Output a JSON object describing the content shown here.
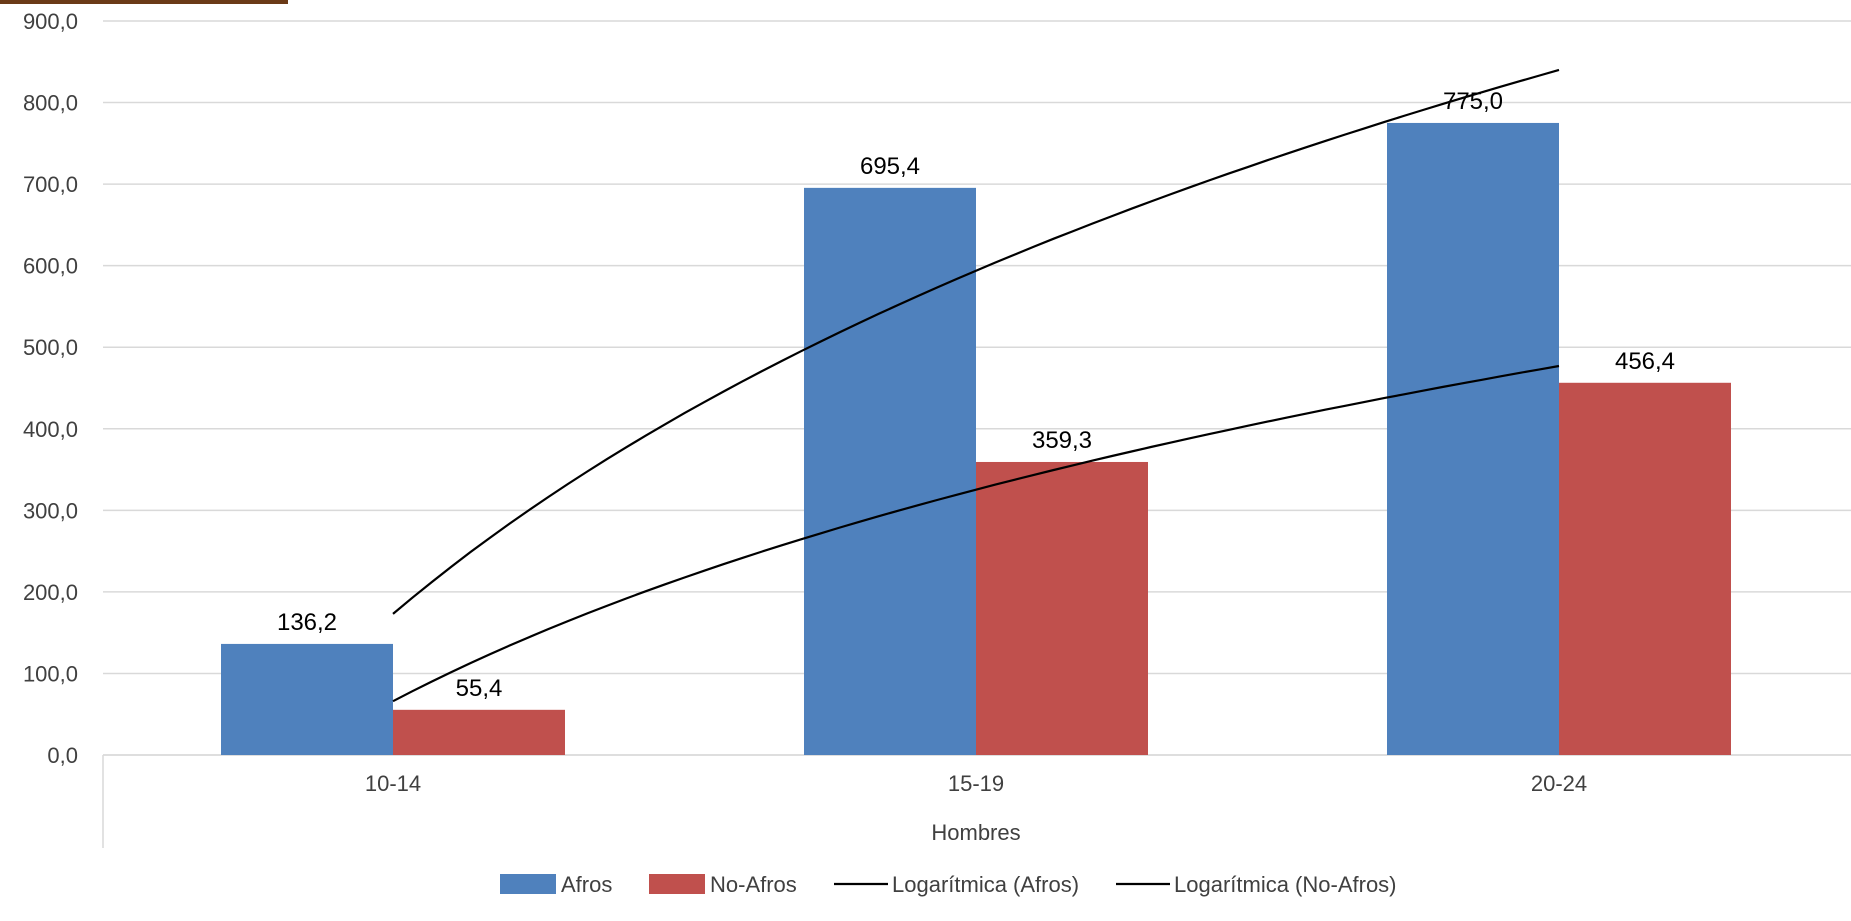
{
  "chart_data": {
    "type": "bar",
    "categories": [
      "10-14",
      "15-19",
      "20-24"
    ],
    "group_label": "Hombres",
    "series": [
      {
        "name": "Afros",
        "values": [
          136.2,
          695.4,
          775.0
        ],
        "labels": [
          "136,2",
          "695,4",
          "775,0"
        ],
        "color": "#4f81bd"
      },
      {
        "name": "No-Afros",
        "values": [
          55.4,
          359.3,
          456.4
        ],
        "labels": [
          "55,4",
          "359,3",
          "456,4"
        ],
        "color": "#c0504d"
      }
    ],
    "trendlines": [
      {
        "name": "Logarítmica (Afros)",
        "type": "logarithmic",
        "series": "Afros",
        "values": [
          173,
          590,
          840
        ],
        "color": "#000000"
      },
      {
        "name": "Logarítmica (No-Afros)",
        "type": "logarithmic",
        "series": "No-Afros",
        "values": [
          66,
          327,
          477
        ],
        "color": "#000000"
      }
    ],
    "ylim": [
      0,
      900
    ],
    "yticks": [
      "0,0",
      "100,0",
      "200,0",
      "300,0",
      "400,0",
      "500,0",
      "600,0",
      "700,0",
      "800,0",
      "900,0"
    ],
    "grid": true,
    "legend_position": "bottom"
  }
}
